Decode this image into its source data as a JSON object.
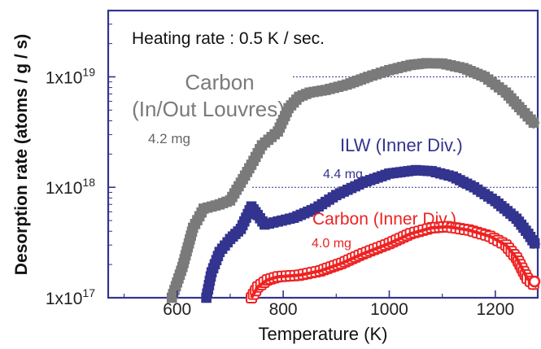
{
  "chart_data": {
    "type": "line",
    "xlabel": "Temperature (K)",
    "ylabel": "Desorption rate (atoms / g / s)",
    "xlim": [
      470,
      1280
    ],
    "ylog": true,
    "ylim_exp": [
      17,
      19.6
    ],
    "x_ticks": [
      600,
      800,
      1000,
      1200
    ],
    "x_tick_labels": [
      "600",
      "800",
      "1000",
      "1200"
    ],
    "y_ticks": [
      {
        "base": "1x10",
        "exp": "17",
        "value": 1e+17
      },
      {
        "base": "1x10",
        "exp": "18",
        "value": 1e+18
      },
      {
        "base": "1x10",
        "exp": "19",
        "value": 1e+19
      }
    ],
    "grid": "dotted at 1e18 and 1e19",
    "annotations": {
      "heating_rate": "Heating rate : 0.5 K / sec."
    },
    "series": [
      {
        "name": "Carbon (In/Out Louvres)",
        "name_line1": "Carbon",
        "name_line2": "(In/Out Louvres)",
        "mass": "4.2 mg",
        "color": "#7a7a7a",
        "x": [
          590,
          610,
          630,
          650,
          680,
          700,
          720,
          740,
          760,
          790,
          810,
          830,
          850,
          880,
          920,
          960,
          1000,
          1040,
          1070,
          1100,
          1140,
          1180,
          1220,
          1250,
          1278
        ],
        "y": [
          1e+17,
          1.9e+17,
          4.3e+17,
          6.4e+17,
          7e+17,
          7.6e+17,
          1.1e+18,
          1.6e+18,
          2.4e+18,
          3.2e+18,
          5.2e+18,
          6.6e+18,
          7.2e+18,
          7.6e+18,
          8.5e+18,
          1e+19,
          1.15e+19,
          1.28e+19,
          1.33e+19,
          1.32e+19,
          1.2e+19,
          1e+19,
          7.2e+18,
          5e+18,
          3.6e+18
        ]
      },
      {
        "name": "ILW (Inner Div.)",
        "mass": "4.4 mg",
        "color": "#33348f",
        "x": [
          655,
          665,
          680,
          700,
          720,
          740,
          752,
          765,
          790,
          820,
          860,
          900,
          950,
          1000,
          1050,
          1080,
          1120,
          1160,
          1200,
          1240,
          1262,
          1278
        ],
        "y": [
          1e+17,
          1.7e+17,
          2.6e+17,
          3.4e+17,
          4.2e+17,
          6.7e+17,
          5.6e+17,
          4.6e+17,
          4.9e+17,
          5.3e+17,
          6.4e+17,
          8.5e+17,
          1.1e+18,
          1.33e+18,
          1.43e+18,
          1.4e+18,
          1.25e+18,
          1e+18,
          7.5e+17,
          5.2e+17,
          3.8e+17,
          2.9e+17
        ]
      },
      {
        "name": "Carbon (Inner Div.)",
        "mass": "4.0 mg",
        "color": "#ee2222",
        "x": [
          740,
          752,
          770,
          790,
          830,
          870,
          910,
          950,
          1000,
          1040,
          1080,
          1110,
          1150,
          1190,
          1220,
          1240,
          1260,
          1278
        ],
        "y": [
          1e+17,
          1.25e+17,
          1.45e+17,
          1.55e+17,
          1.6e+17,
          1.75e+17,
          2.05e+17,
          2.5e+17,
          3.1e+17,
          3.8e+17,
          4.3e+17,
          4.4e+17,
          4.1e+17,
          3.6e+17,
          3e+17,
          2.3e+17,
          1.5e+17,
          1.25e+17
        ]
      }
    ]
  }
}
